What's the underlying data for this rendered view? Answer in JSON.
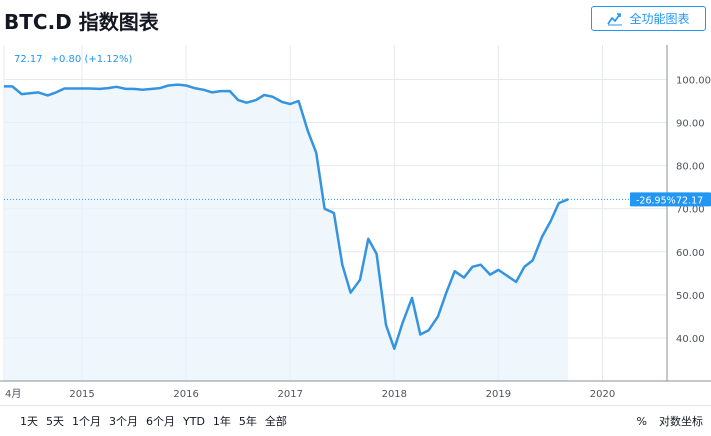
{
  "title": "BTC.D 指数图表",
  "full_button": {
    "label": "全功能图表",
    "icon": "chart-line-icon"
  },
  "quote": {
    "value": "72.17",
    "change": "+0.80",
    "change_pct": "(+1.12%)"
  },
  "price_tag": {
    "pct": "-26.95%",
    "value": "72.17"
  },
  "range_buttons": [
    "1天",
    "5天",
    "1个月",
    "3个月",
    "6个月",
    "YTD",
    "1年",
    "5年",
    "全部"
  ],
  "right_controls": {
    "percent": "%",
    "log": "对数坐标"
  },
  "colors": {
    "line": "#3594e0",
    "fill": "#e8f2fb",
    "accent": "#2196f3",
    "grid": "#e6e9ee"
  },
  "chart_data": {
    "type": "area",
    "ylim": [
      30,
      108
    ],
    "yticks": [
      40,
      50,
      60,
      70,
      80,
      90,
      100
    ],
    "ytick_labels": [
      "40.00",
      "50.00",
      "60.00",
      "70.00",
      "80.00",
      "90.00",
      "100.00"
    ],
    "xlim": [
      2014.25,
      2020.62
    ],
    "xticks": [
      2014.25,
      2015,
      2016,
      2017,
      2018,
      2019,
      2020
    ],
    "xtick_labels": [
      "4月",
      "2015",
      "2016",
      "2017",
      "2018",
      "2019",
      "2020"
    ],
    "last_value": 72.17,
    "grid": true,
    "x": [
      2014.25,
      2014.33,
      2014.42,
      2014.5,
      2014.58,
      2014.67,
      2014.75,
      2014.83,
      2014.92,
      2015.0,
      2015.08,
      2015.17,
      2015.25,
      2015.33,
      2015.42,
      2015.5,
      2015.58,
      2015.67,
      2015.75,
      2015.83,
      2015.92,
      2016.0,
      2016.08,
      2016.17,
      2016.25,
      2016.33,
      2016.42,
      2016.5,
      2016.58,
      2016.67,
      2016.75,
      2016.83,
      2016.92,
      2017.0,
      2017.08,
      2017.17,
      2017.25,
      2017.33,
      2017.42,
      2017.5,
      2017.58,
      2017.67,
      2017.75,
      2017.83,
      2017.92,
      2018.0,
      2018.08,
      2018.17,
      2018.25,
      2018.33,
      2018.42,
      2018.5,
      2018.58,
      2018.67,
      2018.75,
      2018.83,
      2018.92,
      2019.0,
      2019.08,
      2019.17,
      2019.25,
      2019.33,
      2019.42,
      2019.5,
      2019.58,
      2019.67
    ],
    "y": [
      98.4,
      98.4,
      96.6,
      96.8,
      97.0,
      96.3,
      97.0,
      97.9,
      97.9,
      97.9,
      97.9,
      97.8,
      98.0,
      98.3,
      97.8,
      97.8,
      97.6,
      97.8,
      98.0,
      98.6,
      98.8,
      98.6,
      98.0,
      97.6,
      97.0,
      97.3,
      97.3,
      95.2,
      94.6,
      95.2,
      96.4,
      96.0,
      94.8,
      94.3,
      95.0,
      88.0,
      83.0,
      70.0,
      69.0,
      57.0,
      50.5,
      53.5,
      63.0,
      59.5,
      43.0,
      37.5,
      43.5,
      49.3,
      40.8,
      41.8,
      45.0,
      50.5,
      55.5,
      54.0,
      56.5,
      57.0,
      54.7,
      55.8,
      54.5,
      53.0,
      56.5,
      58.0,
      63.5,
      67.0,
      71.3,
      72.17
    ]
  }
}
